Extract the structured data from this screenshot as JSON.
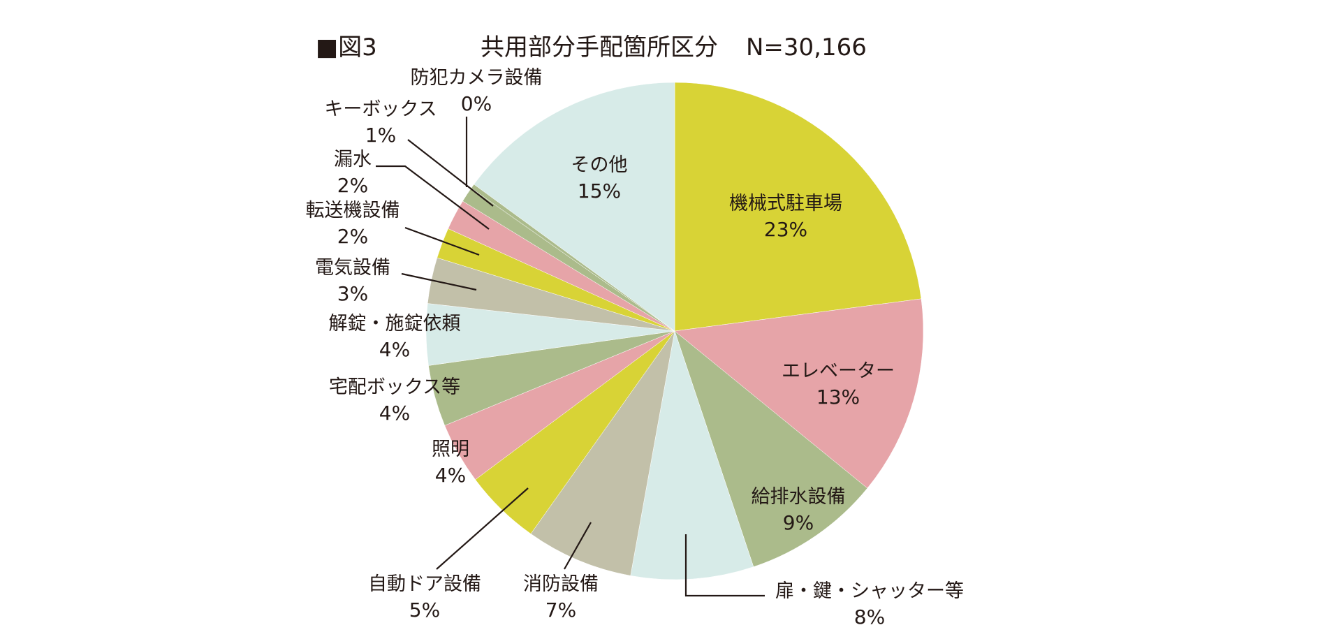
{
  "chart_data": {
    "type": "pie",
    "figure_label": "■図3",
    "title": "共用部分手配箇所区分",
    "n_label": "N=30,166",
    "start": "12 o'clock",
    "direction": "clockwise",
    "slices": [
      {
        "label": "機械式駐車場",
        "value": 23,
        "value_label": "23%",
        "color": "#d8d336"
      },
      {
        "label": "エレベーター",
        "value": 13,
        "value_label": "13%",
        "color": "#e6a4a8"
      },
      {
        "label": "給排水設備",
        "value": 9,
        "value_label": "9%",
        "color": "#abbb8b"
      },
      {
        "label": "扉・鍵・シャッター等",
        "value": 8,
        "value_label": "8%",
        "color": "#d7ebe8"
      },
      {
        "label": "消防設備",
        "value": 7,
        "value_label": "7%",
        "color": "#c2c0a9"
      },
      {
        "label": "自動ドア設備",
        "value": 5,
        "value_label": "5%",
        "color": "#d8d336"
      },
      {
        "label": "照明",
        "value": 4,
        "value_label": "4%",
        "color": "#e6a4a8"
      },
      {
        "label": "宅配ボックス等",
        "value": 4,
        "value_label": "4%",
        "color": "#abbb8b"
      },
      {
        "label": "解錠・施錠依頼",
        "value": 4,
        "value_label": "4%",
        "color": "#d7ebe8"
      },
      {
        "label": "電気設備",
        "value": 3,
        "value_label": "3%",
        "color": "#c2c0a9"
      },
      {
        "label": "転送機設備",
        "value": 2,
        "value_label": "2%",
        "color": "#d8d336"
      },
      {
        "label": "漏水",
        "value": 2,
        "value_label": "2%",
        "color": "#e6a4a8"
      },
      {
        "label": "キーボックス",
        "value": 1,
        "value_label": "1%",
        "color": "#abbb8b"
      },
      {
        "label": "防犯カメラ設備",
        "value": 0.3,
        "value_label": "0%",
        "color": "#abbb8b"
      },
      {
        "label": "その他",
        "value": 15,
        "value_label": "15%",
        "color": "#d7ebe8"
      }
    ]
  }
}
